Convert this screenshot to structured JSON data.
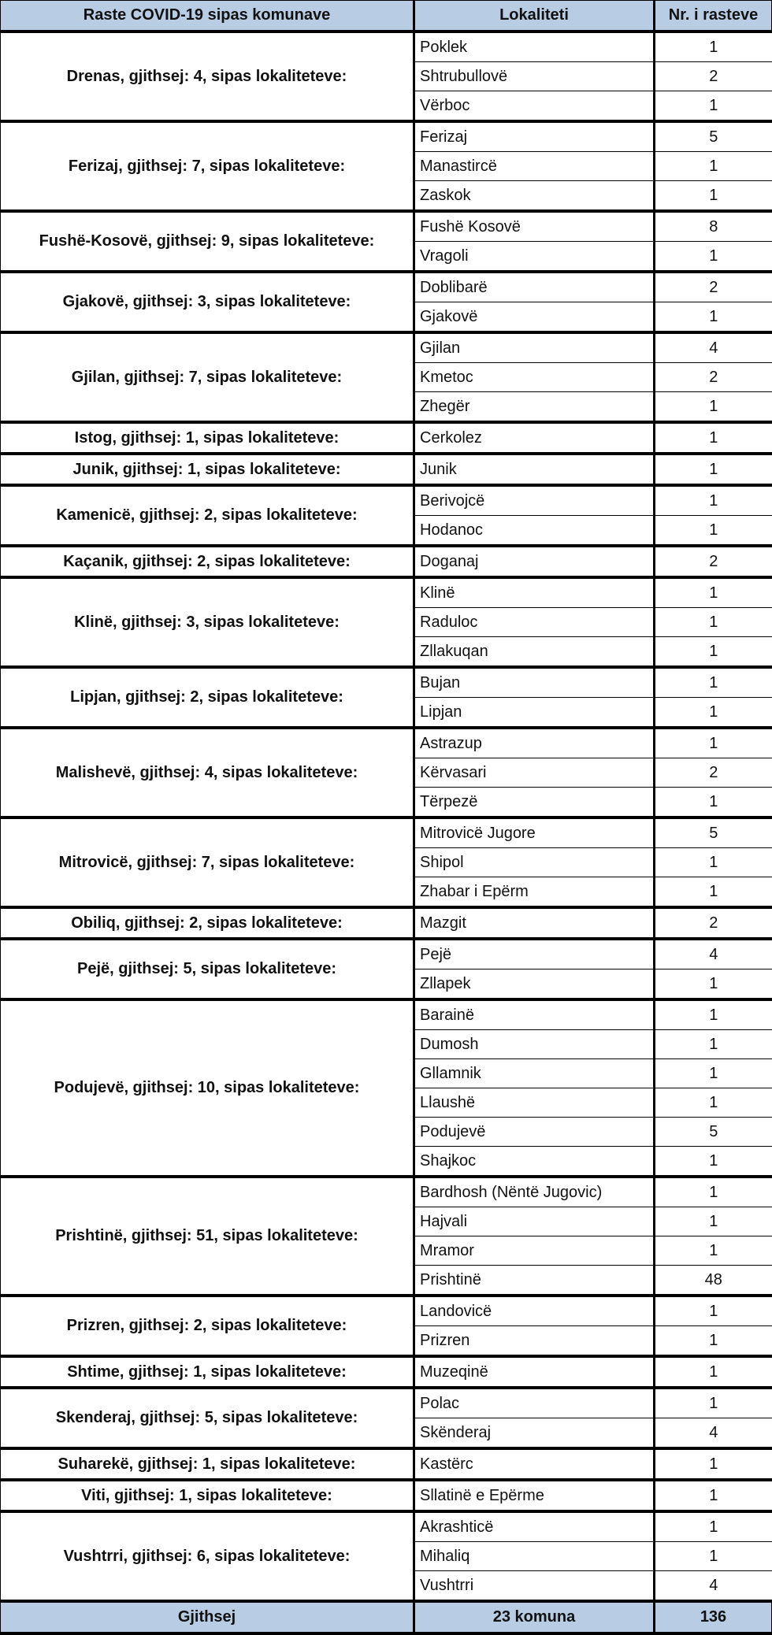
{
  "header": {
    "col1": "Raste COVID-19 sipas komunave",
    "col2": "Lokaliteti",
    "col3": "Nr. i rasteve"
  },
  "header_color": "#b8cce4",
  "groups": [
    {
      "label": "Drenas, gjithsej: 4, sipas lokaliteteve:",
      "rows": [
        {
          "place": "Poklek",
          "count": "1"
        },
        {
          "place": "Shtrubullovë",
          "count": "2"
        },
        {
          "place": "Vërboc",
          "count": "1"
        }
      ]
    },
    {
      "label": "Ferizaj, gjithsej: 7, sipas lokaliteteve:",
      "rows": [
        {
          "place": "Ferizaj",
          "count": "5"
        },
        {
          "place": "Manastircë",
          "count": "1"
        },
        {
          "place": "Zaskok",
          "count": "1"
        }
      ]
    },
    {
      "label": "Fushë-Kosovë, gjithsej: 9, sipas lokaliteteve:",
      "rows": [
        {
          "place": "Fushë Kosovë",
          "count": "8"
        },
        {
          "place": "Vragoli",
          "count": "1"
        }
      ]
    },
    {
      "label": "Gjakovë, gjithsej: 3, sipas lokaliteteve:",
      "rows": [
        {
          "place": "Doblibarë",
          "count": "2"
        },
        {
          "place": "Gjakovë",
          "count": "1"
        }
      ]
    },
    {
      "label": "Gjilan, gjithsej: 7, sipas lokaliteteve:",
      "rows": [
        {
          "place": "Gjilan",
          "count": "4"
        },
        {
          "place": "Kmetoc",
          "count": "2"
        },
        {
          "place": "Zhegër",
          "count": "1"
        }
      ]
    },
    {
      "label": "Istog, gjithsej: 1, sipas lokaliteteve:",
      "rows": [
        {
          "place": "Cerkolez",
          "count": "1"
        }
      ]
    },
    {
      "label": "Junik, gjithsej: 1, sipas lokaliteteve:",
      "rows": [
        {
          "place": "Junik",
          "count": "1"
        }
      ]
    },
    {
      "label": "Kamenicë, gjithsej: 2, sipas lokaliteteve:",
      "rows": [
        {
          "place": "Berivojcë",
          "count": "1"
        },
        {
          "place": "Hodanoc",
          "count": "1"
        }
      ]
    },
    {
      "label": "Kaçanik, gjithsej: 2, sipas lokaliteteve:",
      "rows": [
        {
          "place": "Doganaj",
          "count": "2"
        }
      ]
    },
    {
      "label": "Klinë, gjithsej: 3, sipas lokaliteteve:",
      "rows": [
        {
          "place": "Klinë",
          "count": "1"
        },
        {
          "place": "Raduloc",
          "count": "1"
        },
        {
          "place": "Zllakuqan",
          "count": "1"
        }
      ]
    },
    {
      "label": "Lipjan, gjithsej: 2, sipas lokaliteteve:",
      "rows": [
        {
          "place": "Bujan",
          "count": "1"
        },
        {
          "place": "Lipjan",
          "count": "1"
        }
      ]
    },
    {
      "label": "Malishevë, gjithsej: 4, sipas lokaliteteve:",
      "rows": [
        {
          "place": "Astrazup",
          "count": "1"
        },
        {
          "place": "Kërvasari",
          "count": "2"
        },
        {
          "place": "Tërpezë",
          "count": "1"
        }
      ]
    },
    {
      "label": "Mitrovicë, gjithsej: 7, sipas lokaliteteve:",
      "rows": [
        {
          "place": "Mitrovicë Jugore",
          "count": "5"
        },
        {
          "place": "Shipol",
          "count": "1"
        },
        {
          "place": "Zhabar i Epërm",
          "count": "1"
        }
      ]
    },
    {
      "label": "Obiliq, gjithsej: 2, sipas lokaliteteve:",
      "rows": [
        {
          "place": "Mazgit",
          "count": "2"
        }
      ]
    },
    {
      "label": "Pejë, gjithsej: 5, sipas lokaliteteve:",
      "rows": [
        {
          "place": "Pejë",
          "count": "4"
        },
        {
          "place": "Zllapek",
          "count": "1"
        }
      ]
    },
    {
      "label": "Podujevë, gjithsej: 10, sipas lokaliteteve:",
      "rows": [
        {
          "place": "Barainë",
          "count": "1"
        },
        {
          "place": "Dumosh",
          "count": "1"
        },
        {
          "place": "Gllamnik",
          "count": "1"
        },
        {
          "place": "Llaushë",
          "count": "1"
        },
        {
          "place": "Podujevë",
          "count": "5"
        },
        {
          "place": "Shajkoc",
          "count": "1"
        }
      ]
    },
    {
      "label": "Prishtinë, gjithsej: 51, sipas lokaliteteve:",
      "rows": [
        {
          "place": "Bardhosh (Nëntë Jugovic)",
          "count": "1"
        },
        {
          "place": "Hajvali",
          "count": "1"
        },
        {
          "place": "Mramor",
          "count": "1"
        },
        {
          "place": "Prishtinë",
          "count": "48"
        }
      ]
    },
    {
      "label": "Prizren, gjithsej: 2, sipas lokaliteteve:",
      "rows": [
        {
          "place": "Landovicë",
          "count": "1"
        },
        {
          "place": "Prizren",
          "count": "1"
        }
      ]
    },
    {
      "label": "Shtime, gjithsej: 1, sipas lokaliteteve:",
      "rows": [
        {
          "place": "Muzeqinë",
          "count": "1"
        }
      ]
    },
    {
      "label": "Skenderaj, gjithsej: 5, sipas lokaliteteve:",
      "rows": [
        {
          "place": "Polac",
          "count": "1"
        },
        {
          "place": "Skënderaj",
          "count": "4"
        }
      ]
    },
    {
      "label": "Suharekë, gjithsej: 1, sipas lokaliteteve:",
      "rows": [
        {
          "place": "Kastërc",
          "count": "1"
        }
      ]
    },
    {
      "label": "Viti, gjithsej: 1, sipas lokaliteteve:",
      "rows": [
        {
          "place": "Sllatinë e Epërme",
          "count": "1"
        }
      ]
    },
    {
      "label": "Vushtrri, gjithsej: 6, sipas lokaliteteve:",
      "rows": [
        {
          "place": "Akrashticë",
          "count": "1"
        },
        {
          "place": "Mihaliq",
          "count": "1"
        },
        {
          "place": "Vushtrri",
          "count": "4"
        }
      ]
    }
  ],
  "footer": {
    "label": "Gjithsej",
    "municipalities": "23 komuna",
    "total": "136"
  }
}
